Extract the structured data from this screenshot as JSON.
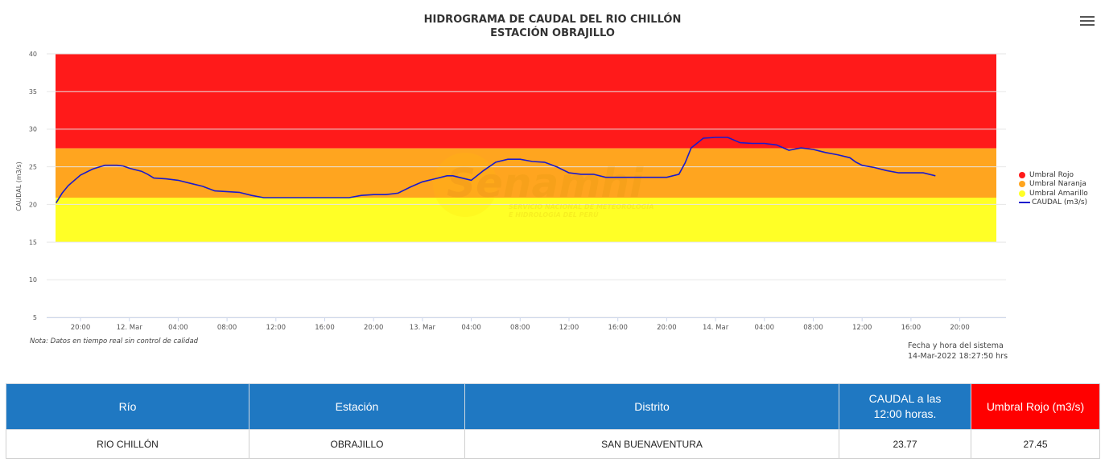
{
  "header": {
    "title_line1": "HIDROGRAMA DE CAUDAL DEL RIO CHILLÓN",
    "title_line2": "ESTACIÓN OBRAJILLO"
  },
  "watermark": {
    "brand": "Senamhi",
    "subtitle_line1": "SERVICIO NACIONAL DE METEOROLOGÍA",
    "subtitle_line2": "E HIDROLOGÍA DEL PERÚ"
  },
  "note": "Nota: Datos en tiempo real sin control de calidad",
  "system_time": {
    "label": "Fecha y hora del sistema",
    "value": "14-Mar-2022 18:27:50 hrs"
  },
  "colors": {
    "red": "#ff1a1a",
    "orange": "#ffa51f",
    "yellow": "#ffff26",
    "series": "#1a1acc",
    "table_header": "#1f78c2",
    "table_header_red": "#ff0000"
  },
  "chart_data": {
    "type": "area",
    "title": "HIDROGRAMA DE CAUDAL DEL RIO CHILLÓN",
    "subtitle": "ESTACIÓN OBRAJILLO",
    "ylabel": "CAUDAL (m3/s)",
    "ylim": [
      5,
      40
    ],
    "yticks": [
      "5",
      "10",
      "15",
      "20",
      "25",
      "30",
      "35",
      "40"
    ],
    "xticks": [
      "20:00",
      "12. Mar",
      "04:00",
      "08:00",
      "12:00",
      "16:00",
      "20:00",
      "13. Mar",
      "04:00",
      "08:00",
      "12:00",
      "16:00",
      "20:00",
      "14. Mar",
      "04:00",
      "08:00",
      "12:00",
      "16:00",
      "20:00"
    ],
    "thresholds": [
      {
        "name": "Umbral Rojo",
        "from": 27.45,
        "to": 40,
        "color": "#ff1a1a"
      },
      {
        "name": "Umbral Naranja",
        "from": 20.9,
        "to": 27.45,
        "color": "#ffa51f"
      },
      {
        "name": "Umbral Amarillo",
        "from": 15,
        "to": 20.9,
        "color": "#ffff26"
      }
    ],
    "series": [
      {
        "name": "CAUDAL (m3/s)",
        "hours": [
          0,
          0.5,
          1,
          2,
          3,
          4,
          5,
          5.5,
          6,
          7,
          7.5,
          8,
          9,
          10,
          11,
          12,
          12.5,
          13,
          15,
          16,
          17,
          17.5,
          18,
          19,
          20,
          22,
          24,
          25,
          26,
          26.5,
          27,
          28,
          29,
          30,
          31,
          32,
          32.5,
          33,
          34,
          35,
          36,
          37,
          38,
          39,
          40,
          41,
          42,
          43,
          44,
          45,
          46,
          47,
          48,
          49,
          50,
          51,
          51.5,
          52,
          53,
          54,
          55,
          56,
          57,
          58,
          59,
          60,
          61,
          62,
          63,
          64,
          65,
          65.5,
          66,
          67,
          68,
          69,
          70,
          71,
          72
        ],
        "values": [
          20.2,
          21.5,
          22.5,
          23.9,
          24.7,
          25.2,
          25.2,
          25.1,
          24.8,
          24.4,
          24.0,
          23.5,
          23.4,
          23.2,
          22.8,
          22.4,
          22.1,
          21.8,
          21.6,
          21.2,
          20.9,
          20.9,
          20.9,
          20.9,
          20.9,
          20.9,
          20.9,
          21.2,
          21.3,
          21.3,
          21.3,
          21.5,
          22.3,
          23.0,
          23.4,
          23.8,
          23.8,
          23.6,
          23.2,
          24.5,
          25.6,
          26.0,
          26.0,
          25.7,
          25.6,
          25.0,
          24.2,
          24.0,
          24.0,
          23.6,
          23.6,
          23.6,
          23.6,
          23.6,
          23.6,
          24.0,
          25.5,
          27.5,
          28.8,
          28.9,
          28.9,
          28.2,
          28.1,
          28.1,
          27.9,
          27.2,
          27.5,
          27.3,
          26.9,
          26.6,
          26.2,
          25.6,
          25.2,
          24.9,
          24.5,
          24.2,
          24.2,
          24.2,
          23.8
        ]
      }
    ],
    "legend": [
      "Umbral Rojo",
      "Umbral Naranja",
      "Umbral Amarillo",
      "CAUDAL (m3/s)"
    ],
    "legend_position": "right"
  },
  "table": {
    "headers": {
      "rio": "Río",
      "estacion": "Estación",
      "distrito": "Distrito",
      "caudal_line1": "CAUDAL a las",
      "caudal_line2": "12:00 horas.",
      "umbral": "Umbral Rojo (m3/s)"
    },
    "row": {
      "rio": "RIO CHILLÓN",
      "estacion": "OBRAJILLO",
      "distrito": "SAN BUENAVENTURA",
      "caudal": "23.77",
      "umbral": "27.45"
    }
  }
}
